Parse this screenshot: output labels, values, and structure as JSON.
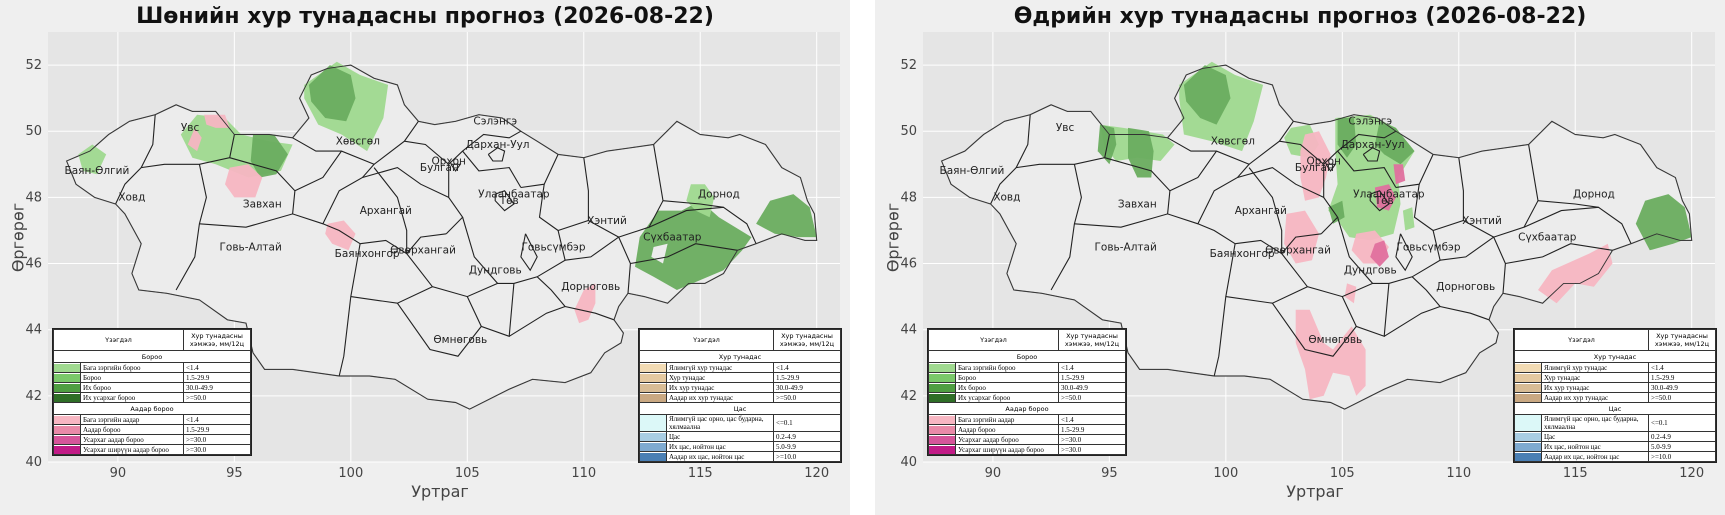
{
  "panels": [
    {
      "id": "left",
      "title": "Шөнийн хур тунадасны прогноз (2026-08-22)",
      "xlabel": "Уртраг",
      "ylabel": "Өргөрөг",
      "xticks": [
        "90",
        "95",
        "100",
        "105",
        "110",
        "115",
        "120"
      ],
      "yticks": [
        "52",
        "50",
        "48",
        "46",
        "44",
        "42",
        "40"
      ],
      "regions": [
        "Увс",
        "Баян-Өлгий",
        "Ховд",
        "Завхан",
        "Говь-Алтай",
        "Хөвсгөл",
        "Архангай",
        "Баянхонгор",
        "Өвөрхангай",
        "Сэлэнгэ",
        "Орхон",
        "Дархан-Уул",
        "Булган",
        "Улаанбаатар",
        "Төв",
        "Говьсүмбэр",
        "Дундговь",
        "Өмнөговь",
        "Дорноговь",
        "Хэнтий",
        "Сүхбаатар",
        "Дорнод"
      ]
    },
    {
      "id": "right",
      "title": "Өдрийн хур тунадасны прогноз (2026-08-22)",
      "xlabel": "Уртраг",
      "ylabel": "Өргөрөг",
      "xticks": [
        "90",
        "95",
        "100",
        "105",
        "110",
        "115",
        "120"
      ],
      "yticks": [
        "52",
        "50",
        "48",
        "46",
        "44",
        "42",
        "40"
      ],
      "regions": [
        "Увс",
        "Баян-Өлгий",
        "Ховд",
        "Завхан",
        "Говь-Алтай",
        "Хөвсгөл",
        "Архангай",
        "Баянхонгор",
        "Өвөрхангай",
        "Сэлэнгэ",
        "Орхон",
        "Дархан-Уул",
        "Булган",
        "Улаанбаатар",
        "Төв",
        "Говьсүмбэр",
        "Дундговь",
        "Өмнөговь",
        "Дорноговь",
        "Хэнтий",
        "Сүхбаатар",
        "Дорнод"
      ]
    }
  ],
  "legend_left": {
    "col1": "Үзэгдэл",
    "col2": "Хур тунадасны хэмжээ, мм/12ц",
    "sections": [
      {
        "title": "Бороо",
        "rows": [
          {
            "label": "Бага зэргийн бороо",
            "value": "<1.4",
            "color": "#9fd98f"
          },
          {
            "label": "Бороо",
            "value": "1.5-29.9",
            "color": "#7ac86a"
          },
          {
            "label": "Их бороо",
            "value": "30.0-49.9",
            "color": "#4f9e42"
          },
          {
            "label": "Их усархаг бороо",
            "value": ">=50.0",
            "color": "#2f6e27"
          }
        ]
      },
      {
        "title": "Аадар бороо",
        "rows": [
          {
            "label": "Бага зэргийн аадар",
            "value": "<1.4",
            "color": "#f7b6c2"
          },
          {
            "label": "Аадар бороо",
            "value": "1.5-29.9",
            "color": "#e98aa8"
          },
          {
            "label": "Усархаг аадар бороо",
            "value": ">=30.0",
            "color": "#d6559a"
          },
          {
            "label": "Усархаг шиpүүн аадар бороо",
            "value": ">=30.0",
            "color": "#c21b87"
          }
        ]
      }
    ]
  },
  "legend_right": {
    "col1": "Үзэгдэл",
    "col2": "Хур тунадасны хэмжээ, мм/12ц",
    "sections": [
      {
        "title": "Хур тунадас",
        "rows": [
          {
            "label": "Ялимгүй хур тунадас",
            "value": "<1.4",
            "color": "#f2dbb4"
          },
          {
            "label": "Хур тунадас",
            "value": "1.5-29.9",
            "color": "#e5c9a0"
          },
          {
            "label": "Их хур тунадас",
            "value": "30.0-49.9",
            "color": "#d8bc95"
          },
          {
            "label": "Аадар их хур тунадас",
            "value": ">=50.0",
            "color": "#c9a882"
          }
        ]
      },
      {
        "title": "Цас",
        "rows": [
          {
            "label": "Ялимгүй цас орно, цас бударна, хялмаална",
            "value": "<=0.1",
            "color": "#dcf8f8"
          },
          {
            "label": "Цас",
            "value": "0.2-4.9",
            "color": "#a9cde3"
          },
          {
            "label": "Их цас, нойтон цас",
            "value": "5.0-9.9",
            "color": "#7faad0"
          },
          {
            "label": "Аадар их цас, нойтон цас",
            "value": ">=10.0",
            "color": "#4a7fb4"
          }
        ]
      }
    ]
  },
  "colors": {
    "light_green": "#9fd98f",
    "dark_green": "#6aad5f",
    "pink": "#f7b6c2",
    "magenta": "#e0709e",
    "map_bg": "#e5e5e5",
    "outside": "#ececec"
  }
}
